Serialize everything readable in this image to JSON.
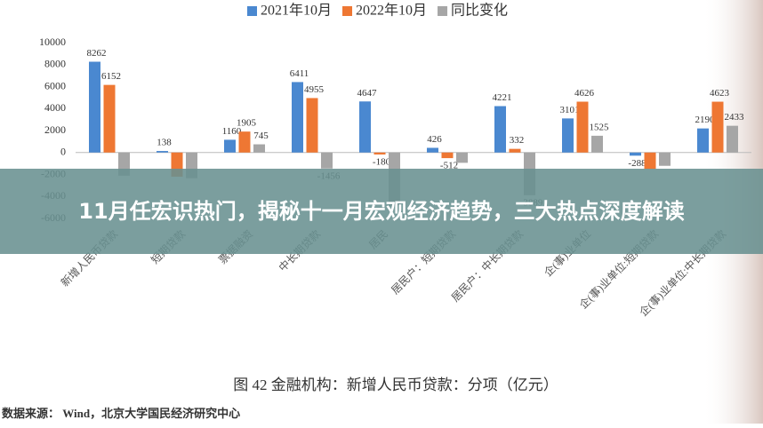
{
  "chart_data": {
    "type": "bar",
    "categories": [
      "新增人民币贷款",
      "短期贷款",
      "票据融资",
      "中长期贷款",
      "居民",
      "居民户：短期贷款",
      "居民户：中长期贷款",
      "企(事)业单位",
      "企(事)业单位:短期贷款",
      "企(事)业单位:中长期贷款"
    ],
    "series": [
      {
        "name": "2021年10月",
        "color": "#4a88d0",
        "values": [
          8262,
          138,
          1160,
          6411,
          4647,
          426,
          4221,
          3101,
          -288,
          2190
        ],
        "value_labels": [
          "8262",
          "138",
          "1160",
          "6411",
          "4647",
          "426",
          "4221",
          "3101",
          "-288",
          "2190"
        ]
      },
      {
        "name": "2022年10月",
        "color": "#ee7733",
        "values": [
          6152,
          -2200,
          1905,
          4955,
          -180,
          -512,
          332,
          4626,
          -1500,
          4623
        ],
        "value_labels": [
          "6152",
          null,
          "1905",
          "4955",
          "-180",
          "-512",
          "332",
          "4626",
          null,
          "4623"
        ]
      },
      {
        "name": "同比变化",
        "color": "#a6a6a6",
        "values": [
          -2110,
          -2338,
          745,
          -1456,
          -4827,
          -938,
          -3889,
          1525,
          -1212,
          2433
        ],
        "value_labels": [
          null,
          null,
          "745",
          "-1456",
          null,
          null,
          "-3889",
          "1525",
          null,
          "2433"
        ]
      }
    ],
    "ylim": [
      -6000,
      10000
    ],
    "yticks": [
      -6000,
      -4000,
      -2000,
      0,
      2000,
      4000,
      6000,
      8000,
      10000
    ],
    "grid": false,
    "legend": "top"
  },
  "caption": "图 42  金融机构：新增人民币贷款：分项（亿元）",
  "source": "数据来源：   Wind，北京大学国民经济研究中心",
  "banner": {
    "title": "11月任宏识热门，揭秘十一月宏观经济趋势，三大热点深度解读"
  }
}
